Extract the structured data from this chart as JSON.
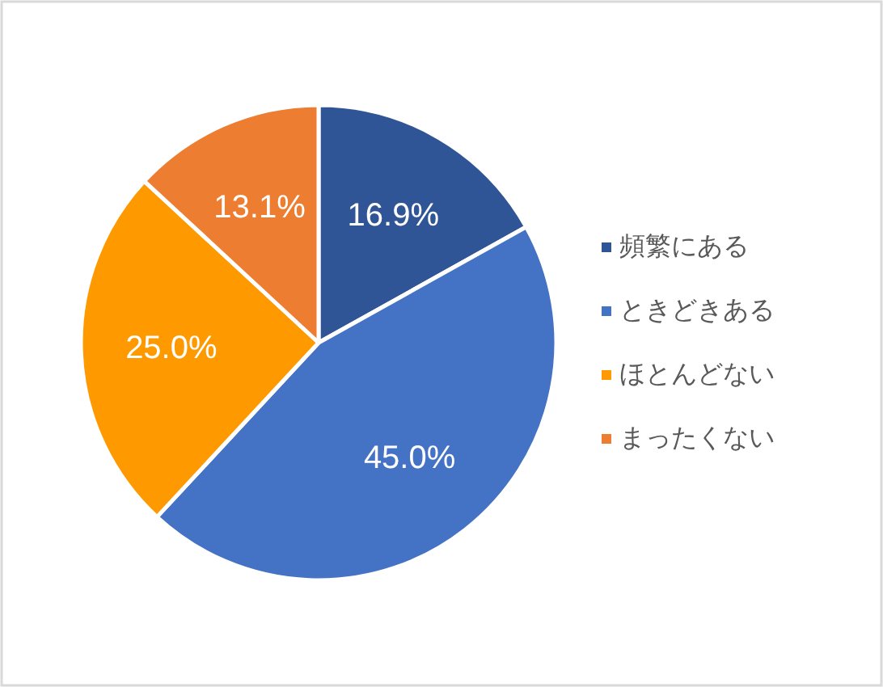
{
  "chart_data": {
    "type": "pie",
    "categories": [
      "頻繁にある",
      "ときどきある",
      "ほとんどない",
      "まったくない"
    ],
    "values": [
      16.9,
      45.0,
      25.0,
      13.1
    ],
    "colors": [
      "#2f5597",
      "#4472c4",
      "#ff9900",
      "#ed7d31"
    ],
    "value_labels": [
      "16.9%",
      "45.0%",
      "25.0%",
      "13.1%"
    ],
    "legend": "right"
  }
}
